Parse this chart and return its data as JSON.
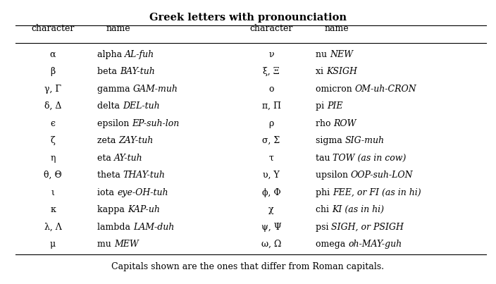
{
  "title": "Greek letters with pronounciation",
  "left_rows": [
    [
      "α",
      "alpha",
      "AL-fuh"
    ],
    [
      "β",
      "beta",
      "BAY-tuh"
    ],
    [
      "γ, Γ",
      "gamma",
      "GAM-muh"
    ],
    [
      "δ, Δ",
      "delta",
      "DEL-tuh"
    ],
    [
      "ϵ",
      "epsilon",
      "EP-suh-lon"
    ],
    [
      "ζ",
      "zeta",
      "ZAY-tuh"
    ],
    [
      "η",
      "eta",
      "AY-tuh"
    ],
    [
      "θ, Θ",
      "theta",
      "THAY-tuh"
    ],
    [
      "ι",
      "iota",
      "eye-OH-tuh"
    ],
    [
      "κ",
      "kappa",
      "KAP-uh"
    ],
    [
      "λ, Λ",
      "lambda",
      "LAM-duh"
    ],
    [
      "μ",
      "mu",
      "MEW"
    ]
  ],
  "right_rows": [
    [
      "ν",
      "nu",
      "NEW"
    ],
    [
      "ξ, Ξ",
      "xi",
      "KSIGH"
    ],
    [
      "o",
      "omicron",
      "OM-uh-CRON"
    ],
    [
      "π, Π",
      "pi",
      "PIE"
    ],
    [
      "ρ",
      "rho",
      "ROW"
    ],
    [
      "σ, Σ",
      "sigma",
      "SIG-muh"
    ],
    [
      "τ",
      "tau",
      "TOW (as in cow)"
    ],
    [
      "υ, Υ",
      "upsilon",
      "OOP-suh-LON"
    ],
    [
      "ϕ, Φ",
      "phi",
      "FEE, or FI (as in hi)"
    ],
    [
      "χ",
      "chi",
      "KI (as in hi)"
    ],
    [
      "ψ, Ψ",
      "psi",
      "SIGH, or PSIGH"
    ],
    [
      "ω, Ω",
      "omega",
      "oh-MAY-guh"
    ]
  ],
  "footnote": "Capitals shown are the ones that differ from Roman capitals.",
  "bg_color": "#ffffff",
  "text_color": "#000000",
  "fontsize": 9.0,
  "title_fontsize": 10.5
}
